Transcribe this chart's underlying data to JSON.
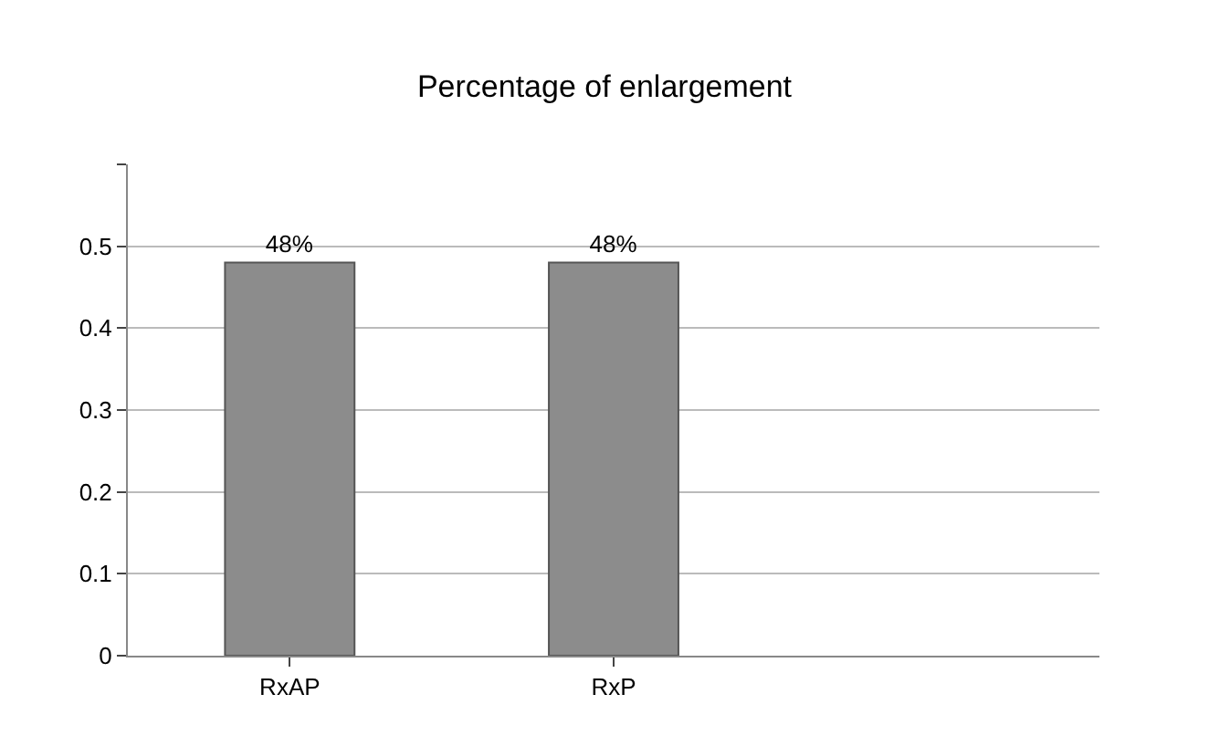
{
  "chart_data": {
    "type": "bar",
    "title": "Percentage of enlargement",
    "categories": [
      "RxAP",
      "RxP",
      null
    ],
    "values": [
      0.48,
      0.48,
      null
    ],
    "value_labels": [
      "48%",
      "48%",
      null
    ],
    "color": "#8c8c8c",
    "ylim": [
      0,
      0.6
    ],
    "yticks": [
      0,
      0.1,
      0.2,
      0.3,
      0.4,
      0.5,
      {
        "value": 0.6,
        "label": null
      }
    ],
    "grid": "y"
  }
}
